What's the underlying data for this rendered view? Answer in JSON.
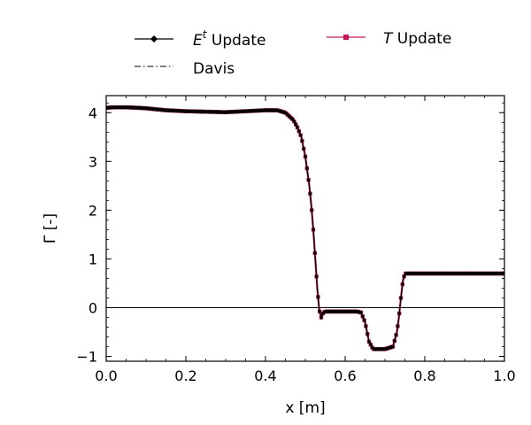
{
  "chart_data": {
    "type": "line",
    "title": "",
    "xlabel": "x [m]",
    "ylabel": "Γ [-]",
    "xlim": [
      0.0,
      1.0
    ],
    "ylim": [
      -1.1,
      4.35
    ],
    "x_ticks": [
      "0.0",
      "0.2",
      "0.4",
      "0.6",
      "0.8",
      "1.0"
    ],
    "y_ticks": [
      "−1",
      "0",
      "1",
      "2",
      "3",
      "4"
    ],
    "grid": false,
    "zero_line": true,
    "legend": {
      "placement": "above-plot",
      "entries": [
        {
          "label_main": "E",
          "label_sup": "t",
          "label_rest": " Update",
          "color": "#000000",
          "marker": "diamond",
          "dash": "solid"
        },
        {
          "label_main": "T",
          "label_sup": "",
          "label_rest": " Update",
          "color": "#c0185c",
          "marker": "square",
          "dash": "solid"
        },
        {
          "label_main": "Davis",
          "label_sup": "",
          "label_rest": "",
          "color": "#000000",
          "marker": "none",
          "dash": "dashdot"
        }
      ]
    },
    "series": [
      {
        "name": "T Update",
        "color": "#c0185c",
        "x": [
          0.0,
          0.02,
          0.05,
          0.08,
          0.1,
          0.15,
          0.2,
          0.25,
          0.3,
          0.35,
          0.4,
          0.43,
          0.45,
          0.47,
          0.48,
          0.49,
          0.5,
          0.51,
          0.515,
          0.52,
          0.525,
          0.53,
          0.535,
          0.54,
          0.545,
          0.55,
          0.6,
          0.63,
          0.64,
          0.65,
          0.66,
          0.67,
          0.7,
          0.72,
          0.73,
          0.735,
          0.74,
          0.745,
          0.75,
          0.8,
          0.9,
          1.0
        ],
        "y": [
          4.1,
          4.11,
          4.11,
          4.1,
          4.09,
          4.05,
          4.03,
          4.02,
          4.01,
          4.03,
          4.05,
          4.05,
          4.0,
          3.85,
          3.7,
          3.5,
          3.1,
          2.5,
          2.1,
          1.6,
          1.0,
          0.4,
          -0.05,
          -0.2,
          -0.1,
          -0.08,
          -0.08,
          -0.08,
          -0.1,
          -0.3,
          -0.7,
          -0.85,
          -0.85,
          -0.8,
          -0.5,
          -0.2,
          0.2,
          0.55,
          0.7,
          0.7,
          0.7,
          0.7
        ]
      },
      {
        "name": "E^t Update",
        "color": "#000000",
        "x": [
          0.0,
          0.02,
          0.05,
          0.08,
          0.1,
          0.15,
          0.2,
          0.25,
          0.3,
          0.35,
          0.4,
          0.43,
          0.45,
          0.47,
          0.48,
          0.49,
          0.5,
          0.51,
          0.515,
          0.52,
          0.525,
          0.53,
          0.535,
          0.54,
          0.545,
          0.55,
          0.6,
          0.63,
          0.64,
          0.65,
          0.66,
          0.67,
          0.7,
          0.72,
          0.73,
          0.735,
          0.74,
          0.745,
          0.75,
          0.8,
          0.9,
          1.0
        ],
        "y": [
          4.1,
          4.11,
          4.11,
          4.1,
          4.09,
          4.05,
          4.03,
          4.02,
          4.01,
          4.03,
          4.05,
          4.05,
          4.0,
          3.85,
          3.7,
          3.5,
          3.1,
          2.5,
          2.1,
          1.6,
          1.0,
          0.4,
          -0.05,
          -0.2,
          -0.1,
          -0.08,
          -0.08,
          -0.08,
          -0.1,
          -0.3,
          -0.7,
          -0.85,
          -0.85,
          -0.8,
          -0.5,
          -0.2,
          0.2,
          0.55,
          0.7,
          0.7,
          0.7,
          0.7
        ]
      },
      {
        "name": "Davis",
        "color": "#000000",
        "x": [
          0.0,
          0.02,
          0.05,
          0.08,
          0.1,
          0.15,
          0.2,
          0.25,
          0.3,
          0.35,
          0.4,
          0.43,
          0.45,
          0.47,
          0.48,
          0.49,
          0.5,
          0.51,
          0.515,
          0.52,
          0.525,
          0.53,
          0.535,
          0.54,
          0.545,
          0.55,
          0.6,
          0.63,
          0.64,
          0.65,
          0.66,
          0.67,
          0.7,
          0.72,
          0.73,
          0.735,
          0.74,
          0.745,
          0.75,
          0.8,
          0.9,
          1.0
        ],
        "y": [
          4.1,
          4.11,
          4.11,
          4.1,
          4.09,
          4.05,
          4.03,
          4.02,
          4.01,
          4.03,
          4.05,
          4.05,
          4.0,
          3.85,
          3.7,
          3.5,
          3.1,
          2.5,
          2.1,
          1.6,
          1.0,
          0.4,
          -0.05,
          -0.2,
          -0.1,
          -0.08,
          -0.08,
          -0.08,
          -0.1,
          -0.3,
          -0.7,
          -0.85,
          -0.85,
          -0.8,
          -0.5,
          -0.2,
          0.2,
          0.55,
          0.7,
          0.7,
          0.7,
          0.7
        ]
      }
    ]
  }
}
